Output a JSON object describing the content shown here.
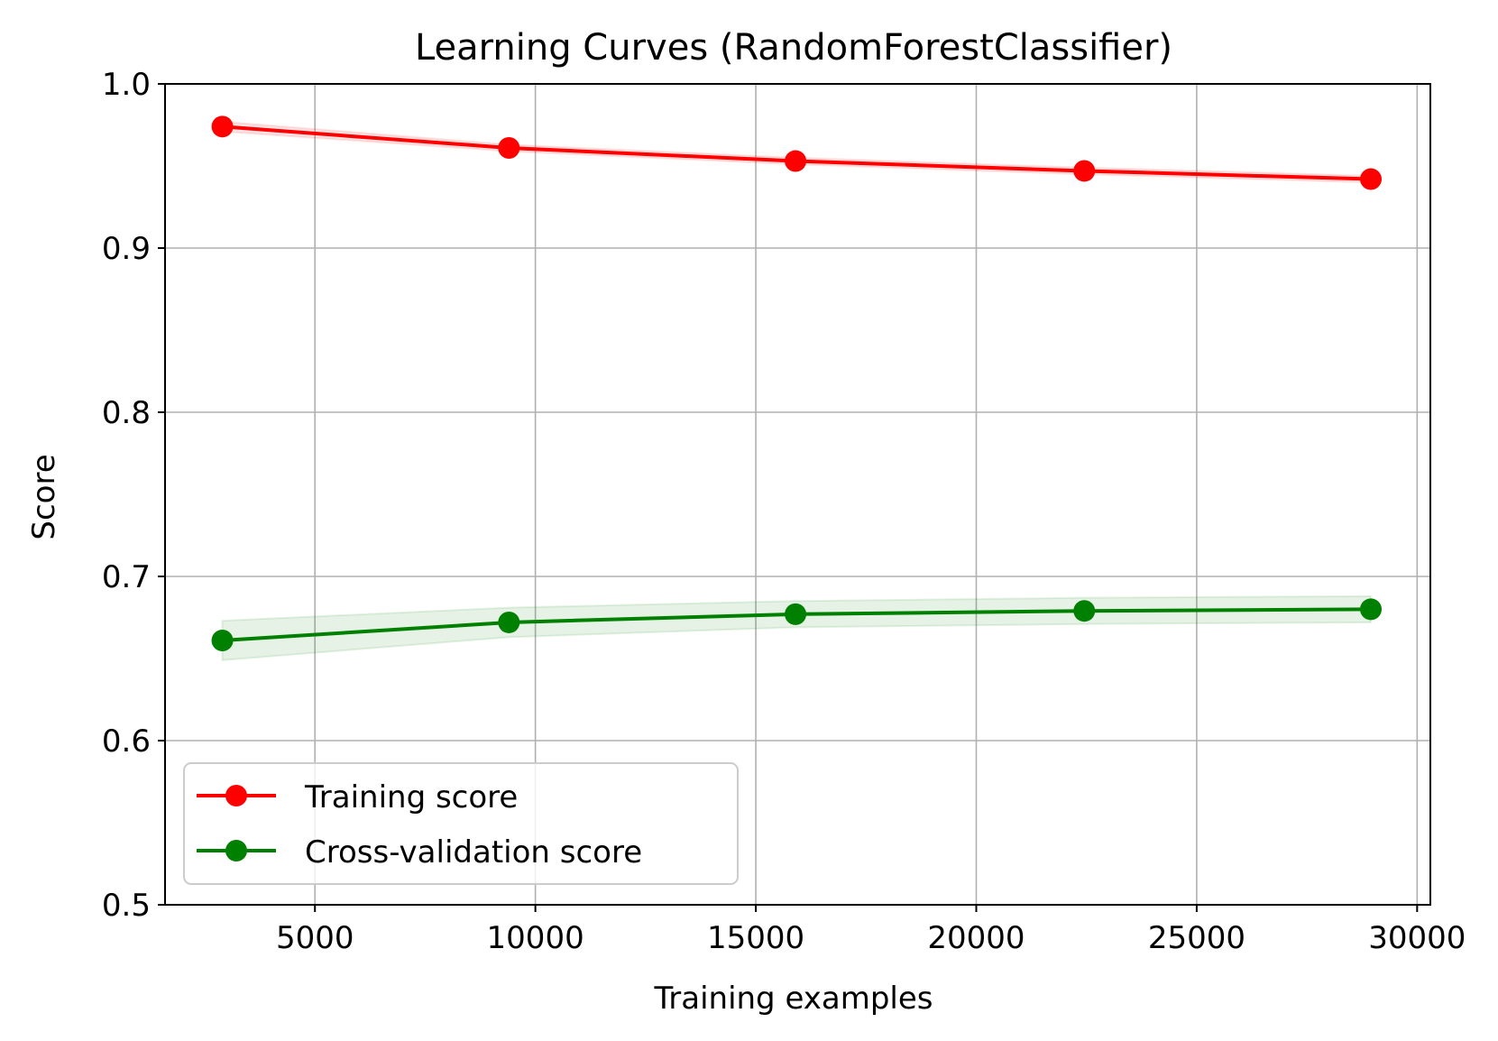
{
  "chart_data": {
    "type": "line",
    "title": "Learning Curves (RandomForestClassifier)",
    "xlabel": "Training examples",
    "ylabel": "Score",
    "xlim": [
      1600,
      30300
    ],
    "ylim": [
      0.5,
      1.0
    ],
    "x_ticks": [
      5000,
      10000,
      15000,
      20000,
      25000,
      30000
    ],
    "y_ticks": [
      0.5,
      0.6,
      0.7,
      0.8,
      0.9,
      1.0
    ],
    "x_tick_labels": [
      "5000",
      "10000",
      "15000",
      "20000",
      "25000",
      "30000"
    ],
    "y_tick_labels": [
      "0.5",
      "0.6",
      "0.7",
      "0.8",
      "0.9",
      "1.0"
    ],
    "grid": true,
    "legend_position": "lower-left",
    "x": [
      2900,
      9400,
      15900,
      22450,
      28950
    ],
    "series": [
      {
        "name": "Training score",
        "color": "#ff0000",
        "band_color": "#ff0000",
        "values": [
          0.974,
          0.961,
          0.953,
          0.947,
          0.942
        ],
        "band_lower": [
          0.971,
          0.959,
          0.951,
          0.945,
          0.94
        ],
        "band_upper": [
          0.977,
          0.963,
          0.955,
          0.949,
          0.944
        ]
      },
      {
        "name": "Cross-validation score",
        "color": "#008000",
        "band_color": "#008000",
        "values": [
          0.661,
          0.672,
          0.677,
          0.679,
          0.68
        ],
        "band_lower": [
          0.649,
          0.663,
          0.669,
          0.671,
          0.672
        ],
        "band_upper": [
          0.673,
          0.681,
          0.685,
          0.687,
          0.688
        ]
      }
    ]
  }
}
